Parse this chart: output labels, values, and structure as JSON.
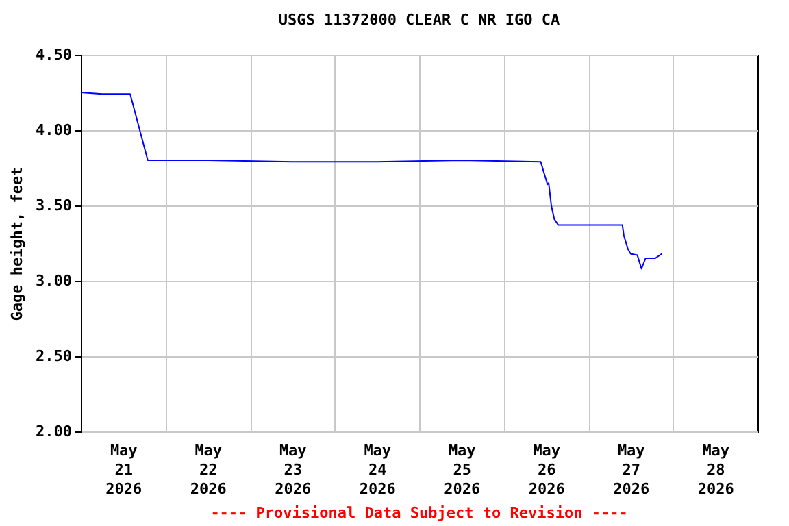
{
  "chart_data": {
    "type": "line",
    "title": "USGS 11372000 CLEAR C NR IGO CA",
    "ylabel": "Gage height, feet",
    "annotations": [
      "---- Provisional Data Subject to Revision ----"
    ],
    "x": [
      "2026-05-21T00:00",
      "2026-05-21T06:00",
      "2026-05-21T14:00",
      "2026-05-21T19:00",
      "2026-05-22T12:00",
      "2026-05-23T12:00",
      "2026-05-24T12:00",
      "2026-05-25T12:00",
      "2026-05-26T10:30",
      "2026-05-26T11:15",
      "2026-05-26T12:25",
      "2026-05-26T12:45",
      "2026-05-26T13:30",
      "2026-05-26T14:20",
      "2026-05-26T15:30",
      "2026-05-27T09:40",
      "2026-05-27T10:05",
      "2026-05-27T11:15",
      "2026-05-27T12:00",
      "2026-05-27T13:55",
      "2026-05-27T15:05",
      "2026-05-27T16:15",
      "2026-05-27T19:00",
      "2026-05-27T20:55"
    ],
    "series": [
      {
        "color": "#0000ff",
        "values": [
          4.25,
          4.24,
          4.24,
          3.8,
          3.8,
          3.79,
          3.79,
          3.8,
          3.79,
          3.73,
          3.64,
          3.65,
          3.5,
          3.41,
          3.37,
          3.37,
          3.3,
          3.21,
          3.18,
          3.17,
          3.08,
          3.15,
          3.15,
          3.18
        ]
      }
    ],
    "xlim": [
      "2026-05-21T00:00",
      "2026-05-29T00:00"
    ],
    "xticks": [
      {
        "value": "2026-05-22T00:00",
        "label": null
      },
      {
        "value": "2026-05-23T00:00",
        "label": null
      },
      {
        "value": "2026-05-24T00:00",
        "label": null
      },
      {
        "value": "2026-05-25T00:00",
        "label": null
      },
      {
        "value": "2026-05-26T00:00",
        "label": null
      },
      {
        "value": "2026-05-27T00:00",
        "label": null
      },
      {
        "value": "2026-05-28T00:00",
        "label": null
      },
      {
        "value": "2026-05-21T12:00",
        "label": "May 21 2026"
      },
      {
        "value": "2026-05-22T12:00",
        "label": "May 22 2026"
      },
      {
        "value": "2026-05-23T12:00",
        "label": "May 23 2026"
      },
      {
        "value": "2026-05-24T12:00",
        "label": "May 24 2026"
      },
      {
        "value": "2026-05-25T12:00",
        "label": "May 25 2026"
      },
      {
        "value": "2026-05-26T12:00",
        "label": "May 26 2026"
      },
      {
        "value": "2026-05-27T12:00",
        "label": "May 27 2026"
      },
      {
        "value": "2026-05-28T12:00",
        "label": "May 28 2026"
      }
    ],
    "ylim": [
      2,
      4.5
    ],
    "yticks": [
      {
        "value": 2,
        "label": "2.00"
      },
      {
        "value": 2.5,
        "label": "2.50"
      },
      {
        "value": 3,
        "label": "3.00"
      },
      {
        "value": 3.5,
        "label": "3.50"
      },
      {
        "value": 4,
        "label": "4.00"
      },
      {
        "value": 4.5,
        "label": "4.50"
      }
    ],
    "grid": true,
    "line_style": "solid",
    "marker": "none"
  }
}
